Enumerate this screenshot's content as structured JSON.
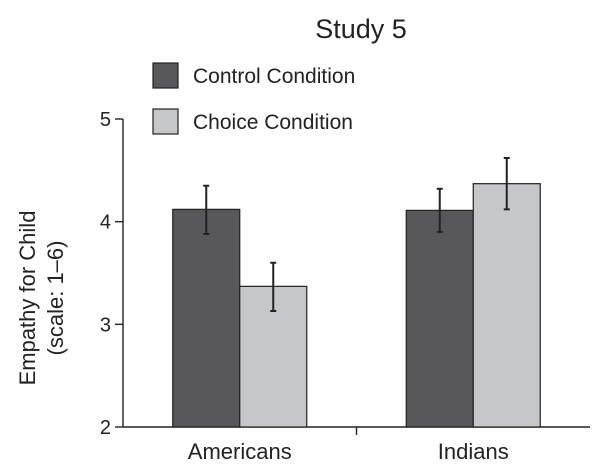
{
  "chart_data": {
    "type": "bar",
    "title": "Study 5",
    "ylabel_lines": [
      "Empathy for Child",
      "(scale: 1–6)"
    ],
    "xlabel": "",
    "categories": [
      "Americans",
      "Indians"
    ],
    "ylim": [
      2,
      5
    ],
    "yticks": [
      2,
      3,
      4,
      5
    ],
    "ytick_labels": [
      "2",
      "3",
      "4",
      "5"
    ],
    "grid": false,
    "legend_position": "top-left",
    "series": [
      {
        "name": "Control Condition",
        "color": "#58585a",
        "values": [
          4.12,
          4.11
        ],
        "error_low": [
          3.88,
          3.9
        ],
        "error_high": [
          4.35,
          4.32
        ]
      },
      {
        "name": "Choice Condition",
        "color": "#c6c7c8",
        "values": [
          3.37,
          4.37
        ],
        "error_low": [
          3.13,
          4.12
        ],
        "error_high": [
          3.6,
          4.62
        ]
      }
    ]
  }
}
